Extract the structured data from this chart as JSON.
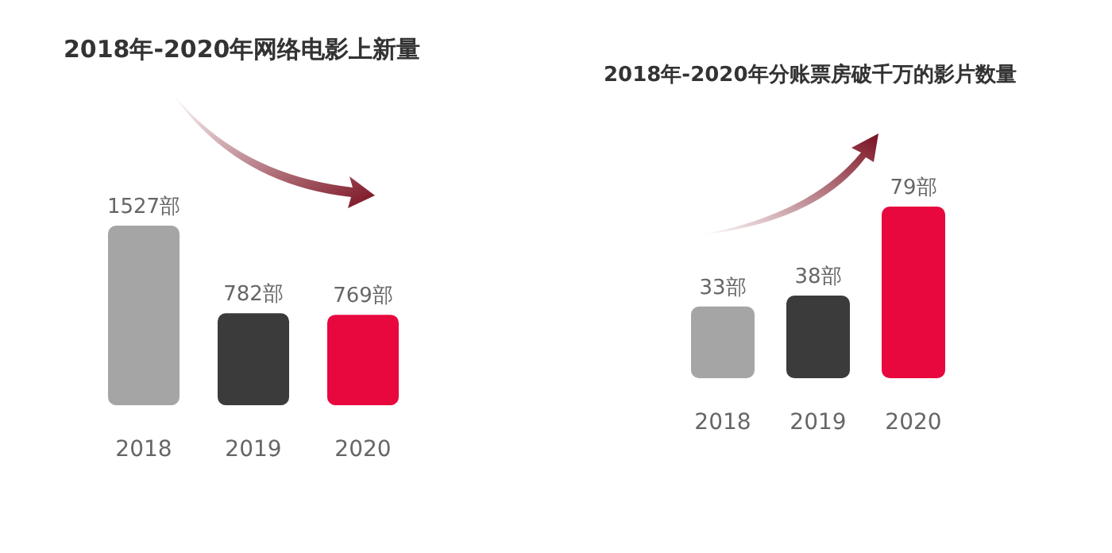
{
  "chart_data": [
    {
      "type": "bar",
      "title": "2018年-2020年网络电影上新量",
      "categories": [
        "2018",
        "2019",
        "2020"
      ],
      "values": [
        1527,
        782,
        769
      ],
      "colors": [
        "#a5a5a5",
        "#3b3b3b",
        "#e8083e"
      ],
      "value_labels": [
        "1527部",
        "782部",
        "769部"
      ]
    },
    {
      "type": "bar",
      "title": "2018年-2020年分账票房破千万的影片数量",
      "categories": [
        "2018",
        "2019",
        "2020"
      ],
      "values": [
        33,
        38,
        79
      ],
      "colors": [
        "#a5a5a5",
        "#3b3b3b",
        "#e8083e"
      ],
      "value_labels": [
        "33部",
        "38部",
        "79部"
      ]
    }
  ]
}
